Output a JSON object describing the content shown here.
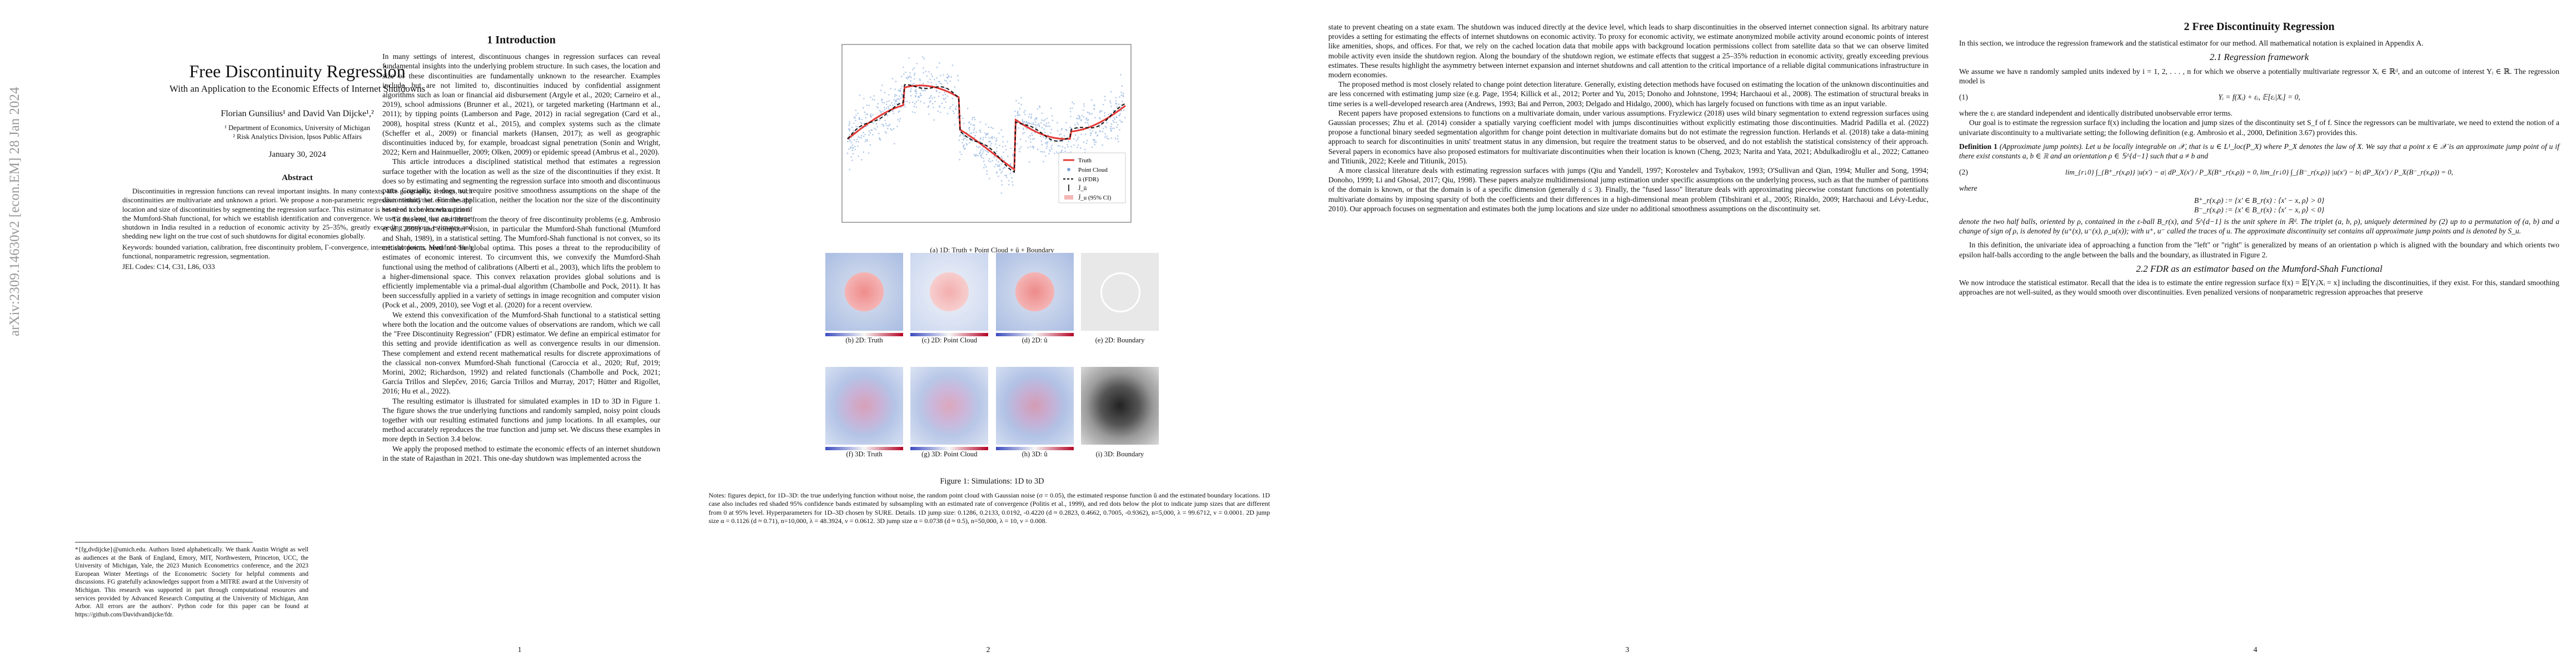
{
  "arxiv_stamp": "arXiv:2309.14630v2  [econ.EM]  28 Jan 2024",
  "page1": {
    "title": "Free Discontinuity Regression",
    "subtitle": "With an Application to the Economic Effects of Internet Shutdowns",
    "authors": "Florian Gunsilius¹ and David Van Dijcke¹,²",
    "affil1": "¹ Department of Economics, University of Michigan",
    "affil2": "² Risk Analytics Division, Ipsos Public Affairs",
    "date": "January 30, 2024",
    "abstract_heading": "Abstract",
    "abstract": "Discontinuities in regression functions can reveal important insights. In many contexts, like geographic settings, such discontinuities are multivariate and unknown a priori. We propose a non-parametric regression method that estimates the location and size of discontinuities by segmenting the regression surface. This estimator is based on a convex relaxation of the Mumford-Shah functional, for which we establish identification and convergence. We use it to show that an internet shutdown in India resulted in a reduction of economic activity by 25–35%, greatly exceeding previous estimates and shedding new light on the true cost of such shutdowns for digital economies globally.",
    "keywords": "Keywords: bounded variation, calibration, free discontinuity problem, Γ-convergence, internet shutdowns, Mumford-Shah functional, nonparametric regression, segmentation.",
    "jel": "JEL Codes: C14, C31, L86, O33",
    "footnote": "*{fg,dvdijcke}@umich.edu. Authors listed alphabetically. We thank Austin Wright as well as audiences at the Bank of England, Emory, MIT, Northwestern, Princeton, UCC, the University of Michigan, Yale, the 2023 Munich Econometrics conference, and the 2023 European Winter Meetings of the Econometric Society for helpful comments and discussions. FG gratefully acknowledges support from a MITRE award at the University of Michigan. This research was supported in part through computational resources and services provided by Advanced Research Computing at the University of Michigan, Ann Arbor. All errors are the authors'. Python code for this paper can be found at https://github.com/Davidvandijcke/fdr.",
    "section_heading": "1    Introduction",
    "col_text": [
      "In many settings of interest, discontinuous changes in regression surfaces can reveal fundamental insights into the underlying problem structure. In such cases, the location and size of these discontinuities are fundamentally unknown to the researcher. Examples include, but are not limited to, discontinuities induced by confidential assignment algorithms such as loan or financial aid disbursement (Argyle et al., 2020; Carneiro et al., 2019), school admissions (Brunner et al., 2021), or targeted marketing (Hartmann et al., 2011); by tipping points (Lamberson and Page, 2012) in racial segregation (Card et al., 2008), hospital stress (Kuntz et al., 2015), and complex systems such as the climate (Scheffer et al., 2009) or financial markets (Hansen, 2017); as well as geographic discontinuities induced by, for example, broadcast signal penetration (Sonin and Wright, 2022; Kern and Hainmueller, 2009; Olken, 2009) or epidemic spread (Ambrus et al., 2020).",
      "This article introduces a disciplined statistical method that estimates a regression surface together with the location as well as the size of the discontinuities if they exist. It does so by estimating and segmenting the regression surface into smooth and discontinuous parts. Crucially, it does not require positive smoothness assumptions on the shape of the discontinuity set. For the application, neither the location nor the size of the discontinuity set need to be known a priori.",
      "To this end, we cast ideas from the theory of free discontinuity problems (e.g. Ambrosio et al., 2000) and computer vision, in particular the Mumford-Shah functional (Mumford and Shah, 1989), in a statistical setting. The Mumford-Shah functional is not convex, so its critical points need not be global optima. This poses a threat to the reproducibility of estimates of economic interest. To circumvent this, we convexify the Mumford-Shah functional using the method of calibrations (Alberti et al., 2003), which lifts the problem to a higher-dimensional space. This convex relaxation provides global solutions and is efficiently implementable via a primal-dual algorithm (Chambolle and Pock, 2011). It has been successfully applied in a variety of settings in image recognition and computer vision (Pock et al., 2009, 2010), see Vogt et al. (2020) for a recent overview.",
      "We extend this convexification of the Mumford-Shah functional to a statistical setting where both the location and the outcome values of observations are random, which we call the \"Free Discontinuity Regression\" (FDR) estimator. We define an empirical estimator for this setting and provide identification as well as convergence results in our dimension. These complement and extend recent mathematical results for discrete approximations of the classical non-convex Mumford-Shah functional (Caroccia et al., 2020; Ruf, 2019; Morini, 2002; Richardson, 1992) and related functionals (Chambolle and Pock, 2021; García Trillos and Slepčev, 2016; García Trillos and Murray, 2017; Hütter and Rigollet, 2016; Hu et al., 2022).",
      "The resulting estimator is illustrated for simulated examples in 1D to 3D in Figure 1. The figure shows the true underlying functions and randomly sampled, noisy point clouds together with our resulting estimated functions and jump locations. In all examples, our method accurately reproduces the true function and jump set. We discuss these examples in more depth in Section 3.4 below.",
      "We apply the proposed method to estimate the economic effects of an internet shutdown in the state of Rajasthan in 2021. This one-day shutdown was implemented across the"
    ],
    "page_number": "1"
  },
  "page2": {
    "legend": [
      "Truth",
      "Point Cloud",
      "û (FDR)",
      "Ĵ_û",
      "Ĵ_u (95% CI)"
    ],
    "subcaptions_row1": "(a) 1D: Truth + Point Cloud + û + Boundary",
    "subcaptions_row2": [
      "(b) 2D: Truth",
      "(c) 2D: Point Cloud",
      "(d) 2D: û",
      "(e) 2D: Boundary"
    ],
    "subcaptions_row3": [
      "(f) 3D: Truth",
      "(g) 3D: Point Cloud",
      "(h) 3D: û",
      "(i) 3D: Boundary"
    ],
    "fig_caption": "Figure 1: Simulations: 1D to 3D",
    "notes": "Notes: figures depict, for 1D–3D: the true underlying function without noise, the random point cloud with Gaussian noise (σ = 0.05), the estimated response function û and the estimated boundary locations. 1D case also includes red shaded 95% confidence bands estimated by subsampling with an estimated rate of convergence (Politis et al., 1999), and red dots below the plot to indicate jump sizes that are different from 0 at 95% level. Hyperparameters for 1D–3D chosen by SURE. Details. 1D jump size: 0.1286, 0.2133, 0.0192, -0.4220 (d ≈ 0.2823, 0.4662, 0.7005, -0.9362), n=5,000, λ = 99.6712, ν = 0.0001. 2D jump size α = 0.1126 (d ≈ 0.71), n=10,000, λ = 48.3924, ν = 0.0612. 3D jump size α = 0.0738 (d ≈ 0.5), n=50,000, λ = 10, ν = 0.008.",
    "page_number": "2"
  },
  "page3": {
    "col_text": [
      "state to prevent cheating on a state exam. The shutdown was induced directly at the device level, which leads to sharp discontinuities in the observed internet connection signal. Its arbitrary nature provides a setting for estimating the effects of internet shutdowns on economic activity. To proxy for economic activity, we estimate anonymized mobile activity around economic points of interest like amenities, shops, and offices. For that, we rely on the cached location data that mobile apps with background location permissions collect from satellite data so that we can observe limited mobile activity even inside the shutdown region. Along the boundary of the shutdown region, we estimate effects that suggest a 25–35% reduction in economic activity, greatly exceeding previous estimates. These results highlight the asymmetry between internet expansion and internet shutdowns and call attention to the critical importance of a reliable digital communications infrastructure in modern economies.",
      "The proposed method is most closely related to change point detection literature. Generally, existing detection methods have focused on estimating the location of the unknown discontinuities and are less concerned with estimating jump size (e.g. Page, 1954; Killick et al., 2012; Porter and Yu, 2015; Donoho and Johnstone, 1994; Harchaoui et al., 2008). The estimation of structural breaks in time series is a well-developed research area (Andrews, 1993; Bai and Perron, 2003; Delgado and Hidalgo, 2000), which has largely focused on functions with time as an input variable.",
      "Recent papers have proposed extensions to functions on a multivariate domain, under various assumptions. Fryzlewicz (2018) uses wild binary segmentation to extend regression surfaces using Gaussian processes; Zhu et al. (2014) consider a spatially varying coefficient model with jumps discontinuities without explicitly estimating those discontinuities. Madrid Padilla et al. (2022) propose a functional binary seeded segmentation algorithm for change point detection in multivariate domains but do not estimate the regression function. Herlands et al. (2018) take a data-mining approach to search for discontinuities in units' treatment status in any dimension, but require the treatment status to be observed, and do not establish the statistical consistency of their approach. Several papers in economics have also proposed estimators for multivariate discontinuities when their location is known (Cheng, 2023; Narita and Yata, 2021; Abdulkadiroğlu et al., 2022; Cattaneo and Titiunik, 2022; Keele and Titiunik, 2015).",
      "A more classical literature deals with estimating regression surfaces with jumps (Qiu and Yandell, 1997; Korostelev and Tsybakov, 1993; O'Sullivan and Qian, 1994; Muller and Song, 1994; Donoho, 1999; Li and Ghosal, 2017; Qiu, 1998). These papers analyze multidimensional jump estimation under specific assumptions on the underlying process, such as that the number of partitions of the domain is known, or that the domain is of a specific dimension (generally d ≤ 3). Finally, the \"fused lasso\" literature deals with approximating piecewise constant functions on potentially multivariate domains by imposing sparsity of both the coefficients and their differences in a high-dimensional mean problem (Tibshirani et al., 2005; Rinaldo, 2009; Harchaoui and Lévy-Leduc, 2010). Our approach focuses on segmentation and estimates both the jump locations and size under no additional smoothness assumptions on the discontinuity set."
    ],
    "page_number": "3"
  },
  "page4": {
    "section_heading": "2    Free Discontinuity Regression",
    "intro": "In this section, we introduce the regression framework and the statistical estimator for our method. All mathematical notation is explained in Appendix A.",
    "sub1": "2.1   Regression framework",
    "p1": "We assume we have n randomly sampled units indexed by i = 1, 2, . . . , n for which we observe a potentially multivariate regressor Xᵢ ∈ ℝᵈ, and an outcome of interest Yᵢ ∈ ℝ. The regression model is",
    "eq1": "Yᵢ = f(Xᵢ) + εᵢ,        𝔼[εᵢ|Xᵢ] = 0,",
    "eq1_num": "(1)",
    "p2": "where the εᵢ are standard independent and identically distributed unobservable error terms.",
    "p3": "Our goal is to estimate the regression surface f(x) including the location and jump sizes of the discontinuity set S_f of f. Since the regressors can be multivariate, we need to extend the notion of a univariate discontinuity to a multivariate setting; the following definition (e.g. Ambrosio et al., 2000, Definition 3.67) provides this.",
    "def_head": "Definition 1",
    "def_text": "(Approximate jump points). Let u be locally integrable on 𝒳, that is u ∈ L¹_loc(P_X) where P_X denotes the law of X. We say that a point x ∈ 𝒳 is an approximate jump point of u if there exist constants a, b ∈ ℝ and an orientation ρ ∈ 𝕊^{d−1} such that a ≠ b and",
    "eq2": "lim_{r↓0} ∫_{B⁺_r(x,ρ)} |u(x') − a| dP_X(x') / P_X(B⁺_r(x,ρ)) = 0,    lim_{r↓0} ∫_{B⁻_r(x,ρ)} |u(x') − b| dP_X(x') / P_X(B⁻_r(x,ρ)) = 0,",
    "eq2_num": "(2)",
    "where": "where",
    "eq3a": "B⁺_r(x,ρ) := {x' ∈ B_r(x) : ⟨x' − x, ρ⟩ > 0}",
    "eq3b": "B⁻_r(x,ρ) := {x' ∈ B_r(x) : ⟨x' − x, ρ⟩ < 0}",
    "def_tail": "denote the two half balls, oriented by ρ, contained in the ε-ball B_r(x), and 𝕊^{d−1} is the unit sphere in ℝᵈ. The triplet (a, b, ρ), uniquely determined by (2) up to a permutation of (a, b) and a change of sign of ρ, is denoted by (u⁺(x), u⁻(x), ρ_u(x)); with u⁺, u⁻ called the traces of u. The approximate discontinuity set contains all approximate jump points and is denoted by S_u.",
    "p4": "In this definition, the univariate idea of approaching a function from the \"left\" or \"right\" is generalized by means of an orientation ρ which is aligned with the boundary and which orients two epsilon half-balls according to the angle between the balls and the boundary, as illustrated in Figure 2.",
    "sub2": "2.2   FDR as an estimator based on the Mumford-Shah Functional",
    "p5": "We now introduce the statistical estimator. Recall that the idea is to estimate the entire regression surface f(x) = 𝔼[Yᵢ|Xᵢ = x] including the discontinuities, if they exist. For this, standard smoothing approaches are not well-suited, as they would smooth over discontinuities. Even penalized versions of nonparametric regression approaches that preserve",
    "page_number": "4"
  }
}
